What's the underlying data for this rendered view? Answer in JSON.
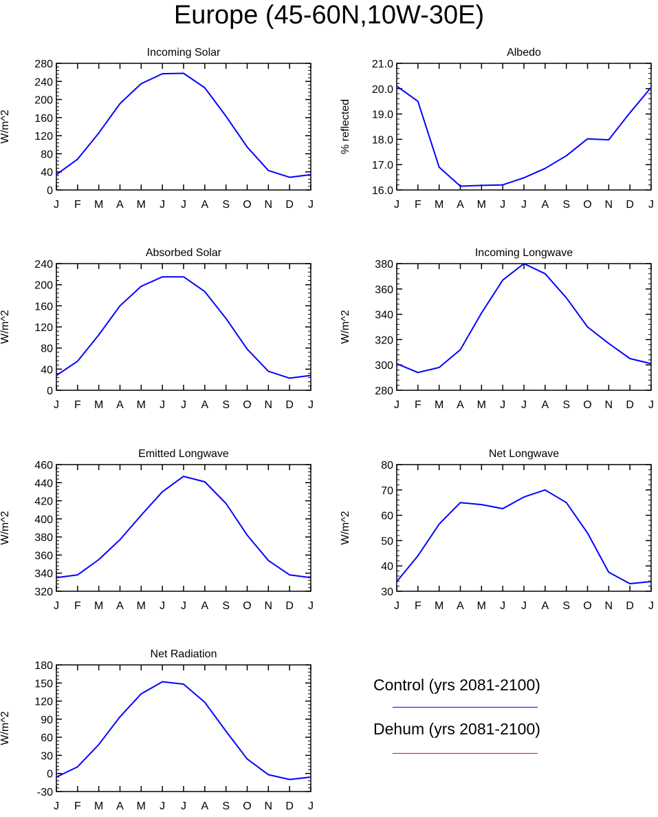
{
  "title": "Europe (45-60N,10W-30E)",
  "series_colors": {
    "control": "#0000ff",
    "dehum": "#ff0000"
  },
  "legend": {
    "control_label": "Control (yrs 2081-2100)",
    "dehum_label": "Dehum (yrs 2081-2100)"
  },
  "chart_data": [
    {
      "type": "line",
      "title": "Incoming Solar",
      "ylabel": "W/m^2",
      "categories": [
        "J",
        "F",
        "M",
        "A",
        "M",
        "J",
        "J",
        "A",
        "S",
        "O",
        "N",
        "D",
        "J"
      ],
      "ylim": [
        0,
        280
      ],
      "yticks": [
        0,
        40,
        80,
        120,
        160,
        200,
        240,
        280
      ],
      "ytick_labels": [
        "0",
        "40",
        "80",
        "120",
        "160",
        "200",
        "240",
        "280"
      ],
      "series": [
        {
          "values": [
            34,
            68,
            126,
            191,
            235,
            257,
            258,
            226,
            163,
            95,
            43,
            28,
            34
          ]
        }
      ]
    },
    {
      "type": "line",
      "title": "Albedo",
      "ylabel": "% reflected",
      "categories": [
        "J",
        "F",
        "M",
        "A",
        "M",
        "J",
        "J",
        "A",
        "S",
        "O",
        "N",
        "D",
        "J"
      ],
      "ylim": [
        16,
        21
      ],
      "yticks": [
        16,
        17,
        18,
        19,
        20,
        21
      ],
      "ytick_labels": [
        "16.0",
        "17.0",
        "18.0",
        "19.0",
        "20.0",
        "21.0"
      ],
      "series": [
        {
          "values": [
            20.1,
            19.5,
            16.9,
            16.15,
            16.18,
            16.2,
            16.48,
            16.85,
            17.35,
            18.02,
            17.98,
            19.05,
            20.05
          ]
        }
      ]
    },
    {
      "type": "line",
      "title": "Absorbed Solar",
      "ylabel": "W/m^2",
      "categories": [
        "J",
        "F",
        "M",
        "A",
        "M",
        "J",
        "J",
        "A",
        "S",
        "O",
        "N",
        "D",
        "J"
      ],
      "ylim": [
        0,
        240
      ],
      "yticks": [
        0,
        40,
        80,
        120,
        160,
        200,
        240
      ],
      "ytick_labels": [
        "0",
        "40",
        "80",
        "120",
        "160",
        "200",
        "240"
      ],
      "series": [
        {
          "values": [
            28,
            55,
            105,
            160,
            197,
            215,
            215,
            187,
            136,
            78,
            36,
            23,
            28
          ]
        }
      ]
    },
    {
      "type": "line",
      "title": "Incoming Longwave",
      "ylabel": "W/m^2",
      "categories": [
        "J",
        "F",
        "M",
        "A",
        "M",
        "J",
        "J",
        "A",
        "S",
        "O",
        "N",
        "D",
        "J"
      ],
      "ylim": [
        280,
        380
      ],
      "yticks": [
        280,
        300,
        320,
        340,
        360,
        380
      ],
      "ytick_labels": [
        "280",
        "300",
        "320",
        "340",
        "360",
        "380"
      ],
      "series": [
        {
          "values": [
            301,
            294,
            298,
            312,
            341,
            367,
            380,
            372,
            353,
            330,
            317,
            305,
            301
          ]
        }
      ]
    },
    {
      "type": "line",
      "title": "Emitted Longwave",
      "ylabel": "W/m^2",
      "categories": [
        "J",
        "F",
        "M",
        "A",
        "M",
        "J",
        "J",
        "A",
        "S",
        "O",
        "N",
        "D",
        "J"
      ],
      "ylim": [
        320,
        460
      ],
      "yticks": [
        320,
        340,
        360,
        380,
        400,
        420,
        440,
        460
      ],
      "ytick_labels": [
        "320",
        "340",
        "360",
        "380",
        "400",
        "420",
        "440",
        "460"
      ],
      "series": [
        {
          "values": [
            335,
            338,
            355,
            377,
            404,
            430,
            447,
            441,
            417,
            382,
            354,
            338,
            335
          ]
        }
      ]
    },
    {
      "type": "line",
      "title": "Net Longwave",
      "ylabel": "W/m^2",
      "categories": [
        "J",
        "F",
        "M",
        "A",
        "M",
        "J",
        "J",
        "A",
        "S",
        "O",
        "N",
        "D",
        "J"
      ],
      "ylim": [
        30,
        80
      ],
      "yticks": [
        30,
        40,
        50,
        60,
        70,
        80
      ],
      "ytick_labels": [
        "30",
        "40",
        "50",
        "60",
        "70",
        "80"
      ],
      "series": [
        {
          "values": [
            33.8,
            44,
            56.5,
            65,
            64.2,
            62.6,
            67.2,
            70,
            65,
            53,
            37.5,
            33,
            33.8
          ]
        }
      ]
    },
    {
      "type": "line",
      "title": "Net Radiation",
      "ylabel": "W/m^2",
      "categories": [
        "J",
        "F",
        "M",
        "A",
        "M",
        "J",
        "J",
        "A",
        "S",
        "O",
        "N",
        "D",
        "J"
      ],
      "ylim": [
        -30,
        180
      ],
      "yticks": [
        -30,
        0,
        30,
        60,
        90,
        120,
        150,
        180
      ],
      "ytick_labels": [
        "-30",
        "0",
        "30",
        "60",
        "90",
        "120",
        "150",
        "180"
      ],
      "series": [
        {
          "values": [
            -6,
            11,
            48,
            94,
            132,
            152,
            148,
            118,
            70,
            24,
            -2,
            -10,
            -6
          ]
        }
      ]
    }
  ]
}
